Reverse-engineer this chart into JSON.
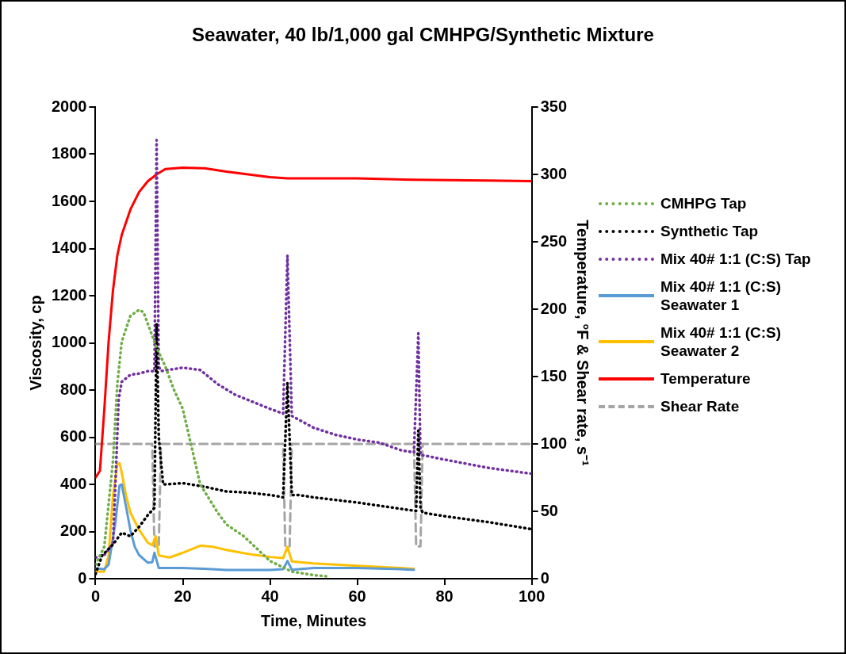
{
  "chart_data": {
    "type": "line",
    "title": "Seawater, 40 lb/1,000 gal CMHPG/Synthetic Mixture",
    "xlabel": "Time, Minutes",
    "ylabel": "Viscosity, cp",
    "y2label": "Temperature, °F & Shear rate, s⁻¹",
    "xlim": [
      0,
      100
    ],
    "xticks": [
      0,
      20,
      40,
      60,
      80,
      100
    ],
    "ylim": [
      0,
      2000
    ],
    "yticks": [
      0,
      200,
      400,
      600,
      800,
      1000,
      1200,
      1400,
      1600,
      1800,
      2000
    ],
    "y2lim": [
      0,
      350
    ],
    "y2ticks": [
      0,
      50,
      100,
      150,
      200,
      250,
      300,
      350
    ],
    "grid": false,
    "legend": "right",
    "marker": "none",
    "series": [
      {
        "name": "CMHPG Tap",
        "color": "#70ad47",
        "line_style": "dotted",
        "x": [
          0,
          2,
          4,
          5,
          6,
          8,
          10,
          11,
          12,
          14,
          16,
          18,
          20,
          22,
          24,
          28,
          30,
          34,
          40,
          45,
          50,
          53
        ],
        "values": [
          60,
          135,
          500,
          825,
          1005,
          1115,
          1140,
          1130,
          1080,
          980,
          900,
          800,
          720,
          560,
          400,
          280,
          230,
          180,
          75,
          30,
          15,
          10
        ]
      },
      {
        "name": "Synthetic Tap",
        "color": "#000000",
        "line_style": "dotted",
        "x": [
          0,
          1.5,
          4,
          6,
          8,
          10,
          12,
          13.5,
          14,
          14.5,
          15.5,
          16,
          20,
          25,
          30,
          35,
          40,
          43,
          44,
          45,
          46.5,
          50,
          60,
          72.4,
          73.5,
          74,
          74.5,
          75,
          80,
          90,
          100
        ],
        "values": [
          20,
          98,
          145,
          195,
          180,
          220,
          270,
          300,
          1080,
          600,
          400,
          400,
          405,
          390,
          370,
          365,
          355,
          345,
          830,
          355,
          355,
          345,
          323,
          290,
          288,
          628,
          300,
          280,
          265,
          240,
          210
        ]
      },
      {
        "name": "Mix 40# 1:1 (C:S) Tap",
        "color": "#7030a0",
        "line_style": "dotted",
        "x": [
          0,
          2,
          4,
          4.7,
          5.3,
          6,
          8,
          10,
          12,
          13.5,
          14,
          14.5,
          15,
          20,
          24,
          28,
          32,
          36,
          40,
          43,
          44,
          45,
          46.5,
          50,
          55,
          60,
          65,
          70,
          73,
          74,
          74.5,
          76,
          80,
          90,
          100
        ],
        "values": [
          90,
          100,
          150,
          470,
          760,
          835,
          865,
          870,
          880,
          880,
          1860,
          900,
          880,
          895,
          885,
          825,
          780,
          750,
          720,
          700,
          1370,
          690,
          675,
          640,
          610,
          590,
          577,
          545,
          535,
          1040,
          525,
          520,
          505,
          470,
          445
        ]
      },
      {
        "name": "Mix 40# 1:1 (C:S) Seawater 1",
        "color": "#5b9bd5",
        "line_style": "solid",
        "x": [
          0,
          2,
          3,
          4.5,
          5.5,
          6,
          7,
          8,
          9,
          10,
          12,
          13,
          13.5,
          14.5,
          20,
          25,
          30,
          40,
          43,
          44,
          45,
          50,
          60,
          70,
          73
        ],
        "values": [
          44,
          40,
          60,
          230,
          395,
          400,
          305,
          205,
          135,
          100,
          68,
          70,
          110,
          45,
          45,
          42,
          37,
          37,
          40,
          75,
          38,
          45,
          45,
          40,
          38
        ]
      },
      {
        "name": "Mix 40# 1:1 (C:S) Seawater 2",
        "color": "#ffc000",
        "line_style": "solid",
        "x": [
          0,
          2,
          3,
          4,
          5,
          5.5,
          6,
          7,
          8,
          10,
          12,
          13,
          13.8,
          14.5,
          17,
          20,
          24,
          27,
          30,
          35,
          40,
          43,
          44,
          45,
          50,
          60,
          73
        ],
        "values": [
          30,
          30,
          100,
          352,
          485,
          490,
          450,
          352,
          280,
          207,
          152,
          142,
          180,
          98,
          90,
          110,
          140,
          135,
          122,
          105,
          92,
          87,
          135,
          73,
          65,
          55,
          42
        ]
      },
      {
        "name": "Temperature",
        "color": "#ff0000",
        "line_style": "solid",
        "axis": "y2",
        "x": [
          0,
          1,
          2,
          3,
          4,
          5,
          6,
          8,
          10,
          12,
          14,
          16,
          20,
          25,
          30,
          40,
          44,
          60,
          73,
          90,
          100
        ],
        "values": [
          75,
          80,
          125,
          176,
          214,
          240,
          255,
          274,
          287,
          295,
          300,
          304,
          305,
          304.5,
          302,
          298,
          297,
          297,
          296,
          295.5,
          295
        ]
      },
      {
        "name": "Shear Rate",
        "color": "#a5a5a5",
        "line_style": "dashed",
        "axis": "y2",
        "x": [
          0,
          13,
          13.5,
          14.5,
          15,
          43,
          43.5,
          44.5,
          45,
          73,
          73.5,
          74.5,
          75,
          100
        ],
        "values": [
          100,
          100,
          24,
          24,
          100,
          100,
          24,
          24,
          100,
          100,
          24,
          24,
          100,
          100
        ]
      }
    ]
  }
}
